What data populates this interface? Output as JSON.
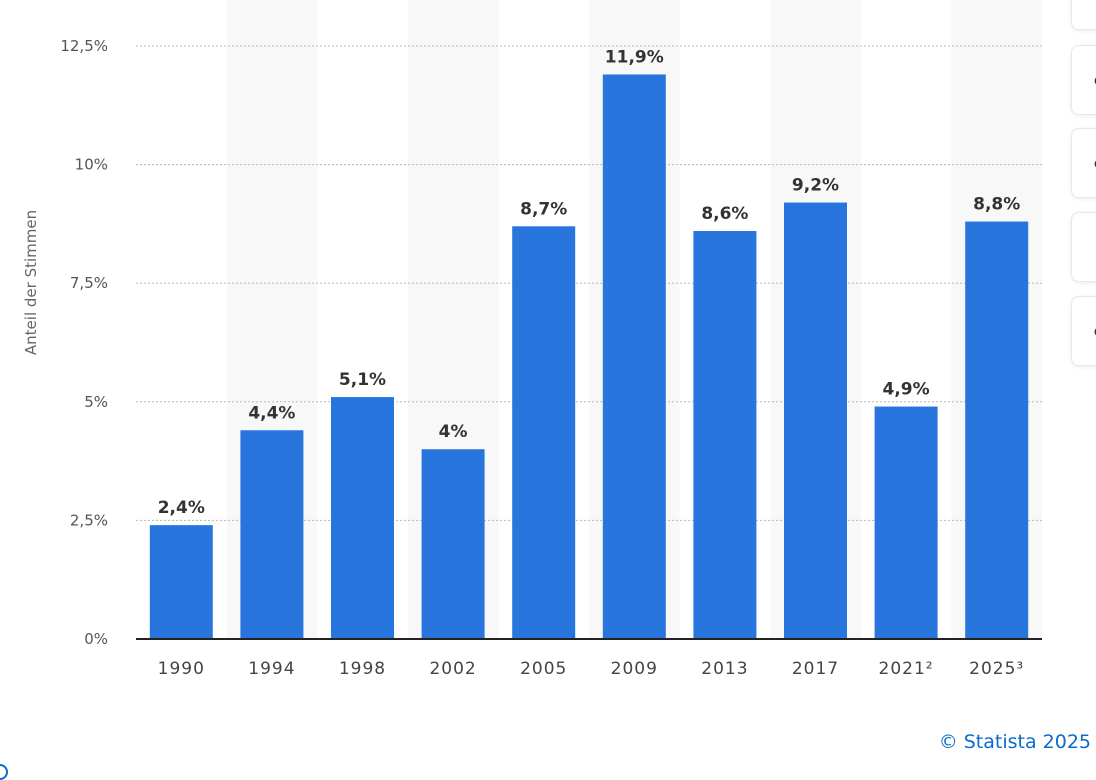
{
  "chart_data": {
    "type": "bar",
    "ylabel": "Anteil der Stimmen",
    "ylim": [
      0,
      12.5
    ],
    "yticks": [
      {
        "value": 0,
        "label": "0%"
      },
      {
        "value": 2.5,
        "label": "2,5%"
      },
      {
        "value": 5,
        "label": "5%"
      },
      {
        "value": 7.5,
        "label": "7,5%"
      },
      {
        "value": 10,
        "label": "10%"
      },
      {
        "value": 12.5,
        "label": "12,5%"
      }
    ],
    "categories": [
      "1990",
      "1994",
      "1998",
      "2002",
      "2005",
      "2009",
      "2013",
      "2017",
      "2021²",
      "2025³"
    ],
    "values": [
      2.4,
      4.4,
      5.1,
      4.0,
      8.7,
      11.9,
      8.6,
      9.2,
      4.9,
      8.8
    ],
    "value_labels": [
      "2,4%",
      "4,4%",
      "5,1%",
      "4%",
      "8,7%",
      "11,9%",
      "8,6%",
      "9,2%",
      "4,9%",
      "8,8%"
    ],
    "grid": true,
    "bar_color": "#2876dd"
  },
  "footer": {
    "copyright": "© Statista 2025"
  }
}
